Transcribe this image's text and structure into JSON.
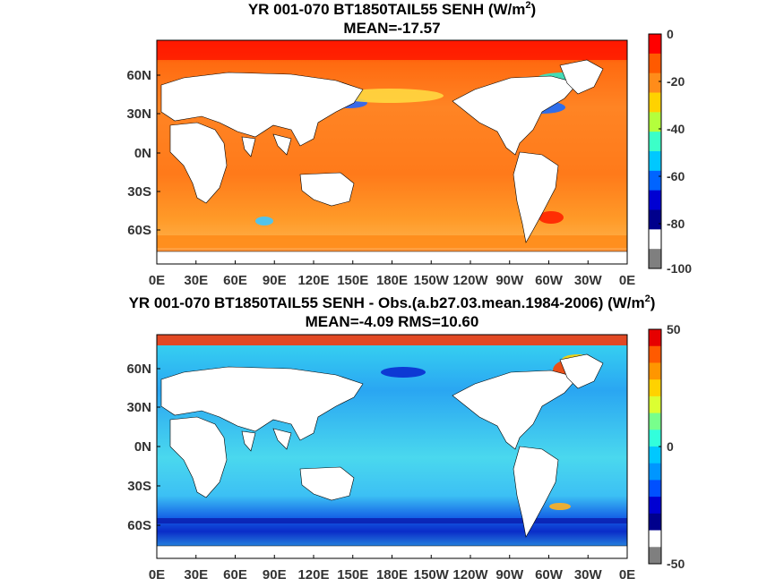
{
  "chart_data": [
    {
      "type": "heatmap",
      "title_line1": "YR 001-070 BT1850TAIL55  SENH (W/m",
      "title_sup": "2",
      "title_close": ")",
      "title_line2": "MEAN=-17.57",
      "x_tick_labels": [
        "0E",
        "30E",
        "60E",
        "90E",
        "120E",
        "150E",
        "180E",
        "150W",
        "120W",
        "90W",
        "60W",
        "30W",
        "0E"
      ],
      "y_tick_labels": [
        "60N",
        "30N",
        "0N",
        "30S",
        "60S"
      ],
      "colorbar_ticks": [
        "0",
        "-20",
        "-40",
        "-60",
        "-80",
        "-100"
      ],
      "colorbar_range": [
        -100,
        0
      ],
      "colorbar_colors": [
        "#ff0000",
        "#ff5a00",
        "#ff8c1a",
        "#ffd200",
        "#b4ff3c",
        "#3cffc8",
        "#00c8ff",
        "#0064ff",
        "#0000d2",
        "#00008c",
        "#ffffff",
        "#7f7f7f"
      ],
      "ocean_fill": "#ff7a1e",
      "land_fill": "#ffffff"
    },
    {
      "type": "heatmap",
      "title_line1": "YR 001-070 BT1850TAIL55 SENH - Obs.(a.b27.03.mean.1984-2006) (W/m",
      "title_sup": "2",
      "title_close": ")",
      "title_line2": "MEAN=-4.09 RMS=10.60",
      "x_tick_labels": [
        "0E",
        "30E",
        "60E",
        "90E",
        "120E",
        "150E",
        "180E",
        "150W",
        "120W",
        "90W",
        "60W",
        "30W",
        "0E"
      ],
      "y_tick_labels": [
        "60N",
        "30N",
        "0N",
        "30S",
        "60S"
      ],
      "colorbar_ticks": [
        "50",
        "0",
        "-50"
      ],
      "colorbar_range": [
        -50,
        50
      ],
      "colorbar_colors": [
        "#e60000",
        "#ff5a00",
        "#ff9600",
        "#ffd200",
        "#dcff32",
        "#78ff8c",
        "#32ffdc",
        "#00c8ff",
        "#0096ff",
        "#0050ff",
        "#0000d2",
        "#00008c",
        "#ffffff",
        "#7f7f7f"
      ],
      "ocean_fill": "#4ad4f0",
      "land_fill": "#ffffff"
    }
  ]
}
